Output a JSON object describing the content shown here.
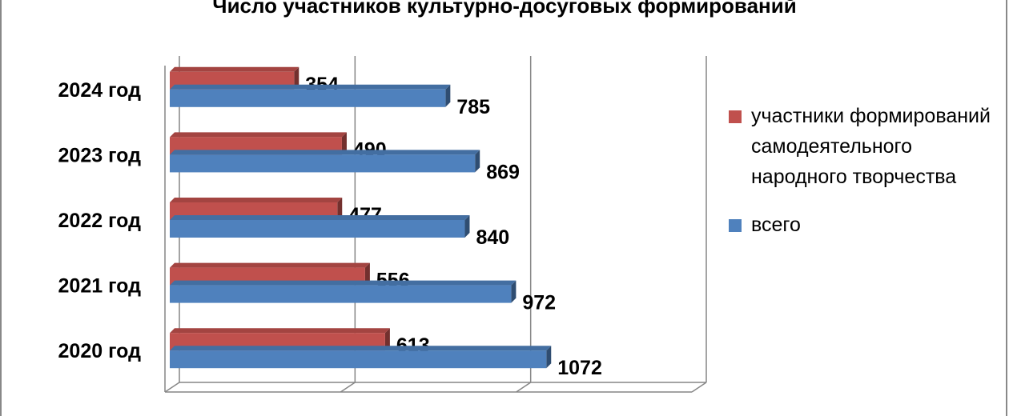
{
  "chart_data": {
    "type": "bar",
    "orientation": "horizontal",
    "title": "Число участников культурно-досуговых формирований",
    "categories": [
      "2020 год",
      "2021 год",
      "2022 год",
      "2023 год",
      "2024 год"
    ],
    "series": [
      {
        "name": "участники формирований самодеятельного народного творчества",
        "color": "#c0504d",
        "values": [
          613,
          556,
          477,
          490,
          354
        ]
      },
      {
        "name": "всего",
        "color": "#4f81bd",
        "values": [
          1072,
          972,
          840,
          869,
          785
        ]
      }
    ],
    "xlim": [
      0,
      1500
    ],
    "grid": true,
    "legend_position": "right",
    "data_labels": true
  }
}
